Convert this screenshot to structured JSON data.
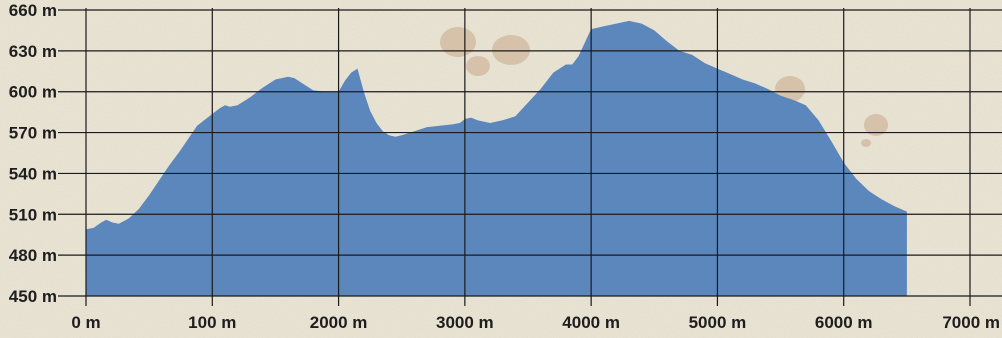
{
  "chart_data": {
    "type": "area",
    "title": "",
    "xlabel": "",
    "ylabel": "",
    "x_ticks": [
      "0 m",
      "100 m",
      "2000 m",
      "3000 m",
      "4000 m",
      "5000 m",
      "6000 m",
      "7000 m"
    ],
    "y_ticks": [
      "450 m",
      "480 m",
      "510 m",
      "540 m",
      "570 m",
      "600 m",
      "630 m",
      "660 m"
    ],
    "xlim": [
      0,
      7000
    ],
    "ylim": [
      450,
      660
    ],
    "grid": true,
    "legend": "none",
    "colors": {
      "fill": "#5b87bd",
      "grid": "#1a1a1a",
      "background": "#ece7d8",
      "stain": "#c9a98a"
    },
    "series": [
      {
        "x": [
          0,
          60,
          120,
          160,
          210,
          260,
          340,
          420,
          500,
          580,
          660,
          740,
          820,
          880,
          920,
          990,
          1060,
          1100,
          1140,
          1200,
          1300,
          1400,
          1500,
          1600,
          1650,
          1700,
          1800,
          1900,
          2000,
          2050,
          2100,
          2150,
          2200,
          2250,
          2300,
          2350,
          2400,
          2450,
          2500,
          2600,
          2700,
          2800,
          2900,
          2960,
          3000,
          3050,
          3100,
          3200,
          3300,
          3400,
          3500,
          3600,
          3700,
          3800,
          3850,
          3900,
          4000,
          4050,
          4100,
          4200,
          4300,
          4400,
          4500,
          4600,
          4700,
          4800,
          4900,
          5000,
          5100,
          5200,
          5300,
          5400,
          5500,
          5600,
          5700,
          5800,
          5900,
          6000,
          6100,
          6200,
          6300,
          6400,
          6500
        ],
        "values": [
          499,
          500,
          504,
          506,
          504,
          503,
          507,
          514,
          524,
          535,
          546,
          556,
          567,
          575,
          578,
          583,
          588,
          590,
          589,
          590,
          596,
          603,
          609,
          611,
          610,
          607,
          601,
          600,
          600,
          608,
          614,
          617,
          600,
          586,
          577,
          571,
          568,
          567,
          568,
          571,
          574,
          575,
          576,
          577,
          580,
          581,
          579,
          577,
          579,
          582,
          592,
          602,
          614,
          620,
          620,
          626,
          646,
          647,
          648,
          650,
          652,
          650,
          645,
          637,
          630,
          627,
          621,
          617,
          613,
          609,
          606,
          602,
          597,
          594,
          590,
          579,
          564,
          548,
          536,
          527,
          521,
          516,
          512
        ]
      }
    ]
  }
}
